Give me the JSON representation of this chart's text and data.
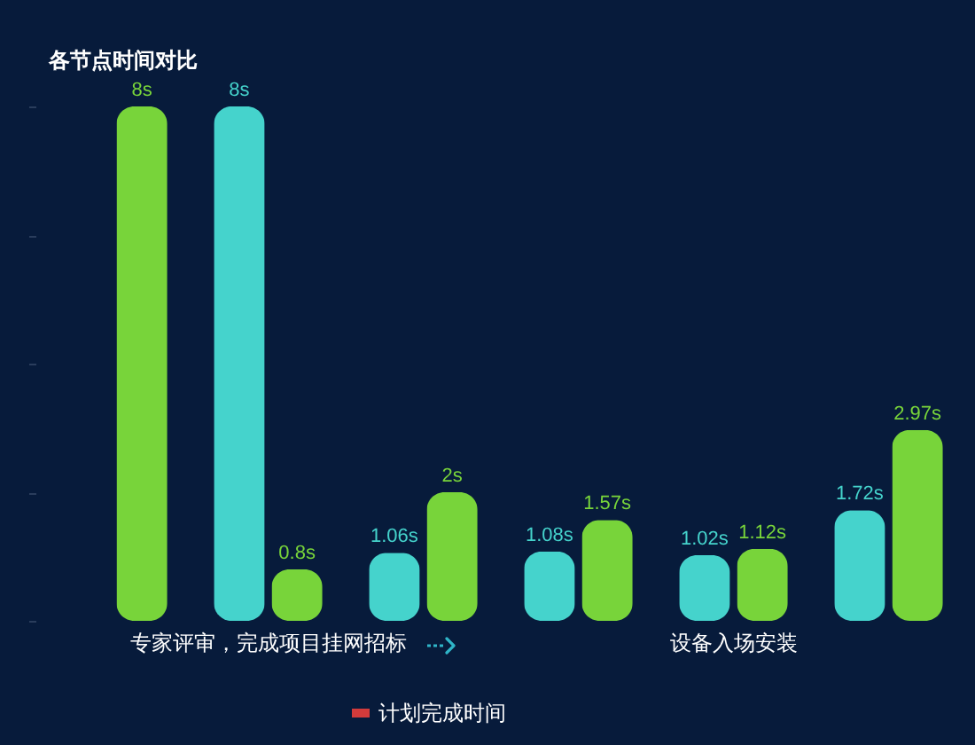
{
  "chart_data": {
    "type": "bar",
    "title": "各节点时间对比",
    "categories": [
      null,
      "专家评审，完成项目挂网招标",
      null,
      null,
      "设备入场安装",
      null
    ],
    "series": [
      {
        "color": "#45d3cc",
        "values": [
          null,
          8,
          1.06,
          1.08,
          1.02,
          1.72
        ],
        "value_labels": [
          null,
          "8s",
          "1.06s",
          "1.08s",
          "1.02s",
          "1.72s"
        ]
      },
      {
        "color": "#78d43a",
        "values": [
          8,
          0.8,
          2,
          1.57,
          1.12,
          2.97
        ],
        "value_labels": [
          "8s",
          "0.8s",
          "2s",
          "1.57s",
          "1.12s",
          "2.97s"
        ]
      },
      {
        "name": "计划完成时间",
        "color": "#d33b3b",
        "values": [
          null,
          null,
          null,
          null,
          null,
          null
        ]
      }
    ],
    "ylim": [
      0,
      8
    ],
    "yticks": [
      {
        "value": 0,
        "label": null
      },
      {
        "value": 2,
        "label": null
      },
      {
        "value": 4,
        "label": null
      },
      {
        "value": 6,
        "label": null
      },
      {
        "value": 8,
        "label": null
      }
    ],
    "tick_labels": "x",
    "legend": "bottom"
  }
}
